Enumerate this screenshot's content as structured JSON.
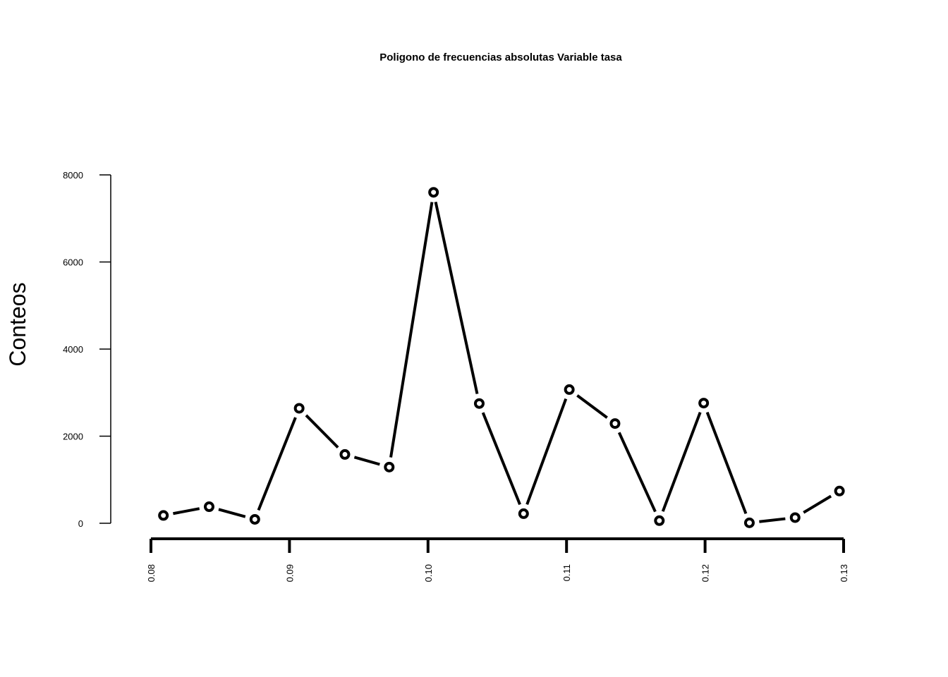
{
  "chart_data": {
    "type": "line",
    "title": "Poligono de frecuencias absolutas Variable tasa",
    "xlabel": "",
    "ylabel": "Conteos",
    "x": [
      0.0809,
      0.0842,
      0.0875,
      0.0907,
      0.094,
      0.0972,
      0.1004,
      0.1037,
      0.1069,
      0.1102,
      0.1135,
      0.1167,
      0.1199,
      0.1232,
      0.1265,
      0.1297
    ],
    "series": [
      {
        "values": [
          180,
          380,
          90,
          2640,
          1580,
          1290,
          7600,
          2750,
          220,
          3070,
          2290,
          60,
          2760,
          10,
          130,
          740
        ]
      }
    ],
    "xlim": [
      0.08,
      0.13
    ],
    "ylim": [
      0,
      8000
    ],
    "x_ticks": [
      "0.08",
      "0.09",
      "0.10",
      "0.11",
      "0.12",
      "0.13"
    ],
    "y_ticks": [
      "0",
      "2000",
      "4000",
      "6000",
      "8000"
    ],
    "grid": false,
    "marker": "open-circle",
    "line_color": "#000000"
  }
}
